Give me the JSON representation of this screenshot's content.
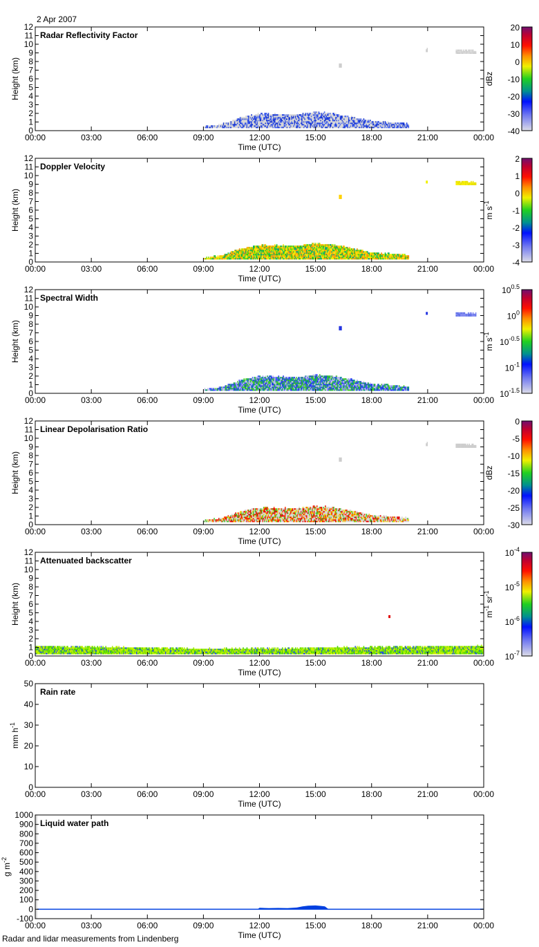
{
  "header": {
    "date": "2 Apr 2007"
  },
  "footer": {
    "caption": "Radar and lidar measurements from Lindenberg"
  },
  "chart_data": [
    {
      "type": "heatmap",
      "title": "Radar Reflectivity Factor",
      "xlabel": "Time (UTC)",
      "ylabel": "Height (km)",
      "xlim": [
        0,
        24
      ],
      "ylim": [
        0,
        12
      ],
      "xticks": [
        "00:00",
        "03:00",
        "06:00",
        "09:00",
        "12:00",
        "15:00",
        "18:00",
        "21:00",
        "00:00"
      ],
      "yticks": [
        0,
        1,
        2,
        3,
        4,
        5,
        6,
        7,
        8,
        9,
        10,
        11,
        12
      ],
      "colorbar": {
        "unit": {
          "base": "dBz",
          "exp": ""
        },
        "ticks": [
          {
            "v": "20"
          },
          {
            "v": "10"
          },
          {
            "v": "0"
          },
          {
            "v": "-10"
          },
          {
            "v": "-20"
          },
          {
            "v": "-30"
          },
          {
            "v": "-40"
          }
        ],
        "range": [
          -40,
          20
        ]
      },
      "layers": [
        {
          "t": [
            9.0,
            20.0
          ],
          "base_km": 0.3,
          "top_km": [
            [
              9,
              0.4
            ],
            [
              10,
              0.7
            ],
            [
              11,
              1.5
            ],
            [
              12,
              1.9
            ],
            [
              14,
              1.8
            ],
            [
              15,
              2.1
            ],
            [
              16,
              1.9
            ],
            [
              17,
              1.5
            ],
            [
              18,
              1.0
            ],
            [
              19,
              0.9
            ],
            [
              20,
              0.7
            ]
          ],
          "palette": [
            "#d6d6d6",
            "#d6d6d6",
            "#d6d6d6",
            "#2040e0",
            "#1030d0",
            "#4060f0",
            "#d6d6d6"
          ]
        },
        {
          "t": [
            16.25,
            16.4
          ],
          "base_km": 7.3,
          "top_km": [
            [
              16.25,
              7.7
            ],
            [
              16.4,
              7.7
            ]
          ],
          "palette": [
            "#cccccc"
          ]
        },
        {
          "t": [
            20.9,
            21.0
          ],
          "base_km": 9.1,
          "top_km": [
            [
              20.9,
              9.4
            ],
            [
              21,
              9.4
            ]
          ],
          "palette": [
            "#cccccc"
          ]
        },
        {
          "t": [
            22.5,
            23.6
          ],
          "base_km": 8.9,
          "top_km": [
            [
              22.5,
              9.3
            ],
            [
              23.6,
              9.2
            ]
          ],
          "palette": [
            "#cccccc",
            "#d8d8d8"
          ]
        }
      ]
    },
    {
      "type": "heatmap",
      "title": "Doppler Velocity",
      "xlabel": "Time (UTC)",
      "ylabel": "Height (km)",
      "xlim": [
        0,
        24
      ],
      "ylim": [
        0,
        12
      ],
      "xticks": [
        "00:00",
        "03:00",
        "06:00",
        "09:00",
        "12:00",
        "15:00",
        "18:00",
        "21:00",
        "00:00"
      ],
      "yticks": [
        0,
        1,
        2,
        3,
        4,
        5,
        6,
        7,
        8,
        9,
        10,
        11,
        12
      ],
      "colorbar": {
        "unit": {
          "base": "m s",
          "exp": "-1"
        },
        "ticks": [
          {
            "v": "2"
          },
          {
            "v": "1"
          },
          {
            "v": "0"
          },
          {
            "v": "-1"
          },
          {
            "v": "-2"
          },
          {
            "v": "-3"
          },
          {
            "v": "-4"
          }
        ],
        "range": [
          -4,
          2
        ]
      },
      "layers": [
        {
          "t": [
            9.0,
            20.0
          ],
          "base_km": 0.3,
          "top_km": [
            [
              9,
              0.4
            ],
            [
              10,
              0.7
            ],
            [
              11,
              1.5
            ],
            [
              12,
              1.9
            ],
            [
              14,
              1.8
            ],
            [
              15,
              2.1
            ],
            [
              16,
              1.9
            ],
            [
              17,
              1.5
            ],
            [
              18,
              1.0
            ],
            [
              19,
              0.9
            ],
            [
              20,
              0.7
            ]
          ],
          "palette": [
            "#f0e000",
            "#ffb000",
            "#ff8c00",
            "#80e000",
            "#20c020",
            "#00a080",
            "#f8f000"
          ]
        },
        {
          "t": [
            16.25,
            16.4
          ],
          "base_km": 7.3,
          "top_km": [
            [
              16.25,
              7.7
            ],
            [
              16.4,
              7.7
            ]
          ],
          "palette": [
            "#ffd000"
          ]
        },
        {
          "t": [
            20.9,
            21.0
          ],
          "base_km": 9.1,
          "top_km": [
            [
              20.9,
              9.4
            ],
            [
              21,
              9.4
            ]
          ],
          "palette": [
            "#f0f000"
          ]
        },
        {
          "t": [
            22.5,
            23.6
          ],
          "base_km": 8.9,
          "top_km": [
            [
              22.5,
              9.3
            ],
            [
              23.6,
              9.2
            ]
          ],
          "palette": [
            "#f8f000",
            "#e8e000"
          ]
        }
      ]
    },
    {
      "type": "heatmap",
      "title": "Spectral Width",
      "xlabel": "Time (UTC)",
      "ylabel": "Height (km)",
      "xlim": [
        0,
        24
      ],
      "ylim": [
        0,
        12
      ],
      "xticks": [
        "00:00",
        "03:00",
        "06:00",
        "09:00",
        "12:00",
        "15:00",
        "18:00",
        "21:00",
        "00:00"
      ],
      "yticks": [
        0,
        1,
        2,
        3,
        4,
        5,
        6,
        7,
        8,
        9,
        10,
        11,
        12
      ],
      "colorbar": {
        "unit": {
          "base": "m s",
          "exp": "-1"
        },
        "ticks": [
          {
            "v": "10",
            "e": "0.5"
          },
          {
            "v": "10",
            "e": "0"
          },
          {
            "v": "10",
            "e": "-0.5"
          },
          {
            "v": "10",
            "e": "-1"
          },
          {
            "v": "10",
            "e": "-1.5"
          }
        ],
        "range": [
          -1.5,
          0.5
        ]
      },
      "layers": [
        {
          "t": [
            9.0,
            20.0
          ],
          "base_km": 0.3,
          "top_km": [
            [
              9,
              0.4
            ],
            [
              10,
              0.7
            ],
            [
              11,
              1.5
            ],
            [
              12,
              1.9
            ],
            [
              14,
              1.8
            ],
            [
              15,
              2.1
            ],
            [
              16,
              1.9
            ],
            [
              17,
              1.5
            ],
            [
              18,
              1.0
            ],
            [
              19,
              0.9
            ],
            [
              20,
              0.7
            ]
          ],
          "palette": [
            "#2030f0",
            "#4050ff",
            "#a0a8f0",
            "#20b040",
            "#40d020",
            "#008890",
            "#c8c8e8"
          ]
        },
        {
          "t": [
            16.25,
            16.4
          ],
          "base_km": 7.3,
          "top_km": [
            [
              16.25,
              7.7
            ],
            [
              16.4,
              7.7
            ]
          ],
          "palette": [
            "#2030e0"
          ]
        },
        {
          "t": [
            20.9,
            21.0
          ],
          "base_km": 9.1,
          "top_km": [
            [
              20.9,
              9.4
            ],
            [
              21,
              9.4
            ]
          ],
          "palette": [
            "#2030e0"
          ]
        },
        {
          "t": [
            22.5,
            23.6
          ],
          "base_km": 8.9,
          "top_km": [
            [
              22.5,
              9.3
            ],
            [
              23.6,
              9.2
            ]
          ],
          "palette": [
            "#8088f0",
            "#6070e8"
          ]
        }
      ]
    },
    {
      "type": "heatmap",
      "title": "Linear Depolarisation Ratio",
      "xlabel": "Time (UTC)",
      "ylabel": "Height (km)",
      "xlim": [
        0,
        24
      ],
      "ylim": [
        0,
        12
      ],
      "xticks": [
        "00:00",
        "03:00",
        "06:00",
        "09:00",
        "12:00",
        "15:00",
        "18:00",
        "21:00",
        "00:00"
      ],
      "yticks": [
        0,
        1,
        2,
        3,
        4,
        5,
        6,
        7,
        8,
        9,
        10,
        11,
        12
      ],
      "colorbar": {
        "unit": {
          "base": "dBz",
          "exp": ""
        },
        "ticks": [
          {
            "v": "0"
          },
          {
            "v": "-5"
          },
          {
            "v": "-10"
          },
          {
            "v": "-15"
          },
          {
            "v": "-20"
          },
          {
            "v": "-25"
          },
          {
            "v": "-30"
          }
        ],
        "range": [
          -30,
          0
        ]
      },
      "layers": [
        {
          "t": [
            9.0,
            20.0
          ],
          "base_km": 0.3,
          "top_km": [
            [
              9,
              0.4
            ],
            [
              10,
              0.7
            ],
            [
              11,
              1.5
            ],
            [
              12,
              1.9
            ],
            [
              14,
              1.8
            ],
            [
              15,
              2.1
            ],
            [
              16,
              1.9
            ],
            [
              17,
              1.5
            ],
            [
              18,
              1.0
            ],
            [
              19,
              0.9
            ],
            [
              20,
              0.7
            ]
          ],
          "palette": [
            "#d6d6d6",
            "#d6d6d6",
            "#e00000",
            "#ff3000",
            "#f0d000",
            "#40c020",
            "#d6d6d6"
          ]
        },
        {
          "t": [
            16.25,
            16.4
          ],
          "base_km": 7.3,
          "top_km": [
            [
              16.25,
              7.7
            ],
            [
              16.4,
              7.7
            ]
          ],
          "palette": [
            "#cccccc"
          ]
        },
        {
          "t": [
            20.9,
            21.0
          ],
          "base_km": 9.1,
          "top_km": [
            [
              20.9,
              9.4
            ],
            [
              21,
              9.4
            ]
          ],
          "palette": [
            "#cccccc"
          ]
        },
        {
          "t": [
            22.5,
            23.6
          ],
          "base_km": 8.9,
          "top_km": [
            [
              22.5,
              9.3
            ],
            [
              23.6,
              9.2
            ]
          ],
          "palette": [
            "#cccccc"
          ]
        }
      ]
    },
    {
      "type": "heatmap",
      "title": "Attenuated backscatter",
      "xlabel": "Time (UTC)",
      "ylabel": "Height (km)",
      "xlim": [
        0,
        24
      ],
      "ylim": [
        0,
        12
      ],
      "xticks": [
        "00:00",
        "03:00",
        "06:00",
        "09:00",
        "12:00",
        "15:00",
        "18:00",
        "21:00",
        "00:00"
      ],
      "yticks": [
        0,
        1,
        2,
        3,
        4,
        5,
        6,
        7,
        8,
        9,
        10,
        11,
        12
      ],
      "colorbar": {
        "unit": {
          "base": "m",
          "exp": "-1",
          "base2": " sr",
          "exp2": "-1"
        },
        "ticks": [
          {
            "v": "10",
            "e": "-4"
          },
          {
            "v": "10",
            "e": "-5"
          },
          {
            "v": "10",
            "e": "-6"
          },
          {
            "v": "10",
            "e": "-7"
          }
        ],
        "range": [
          -7,
          -4
        ]
      },
      "layers": [
        {
          "t": [
            0,
            24
          ],
          "base_km": 0.2,
          "top_km": [
            [
              0,
              1.1
            ],
            [
              6,
              0.9
            ],
            [
              9,
              0.8
            ],
            [
              12,
              0.8
            ],
            [
              15,
              0.9
            ],
            [
              18,
              1.0
            ],
            [
              24,
              1.1
            ]
          ],
          "palette": [
            "#80e000",
            "#a0f000",
            "#c0f000",
            "#40d000",
            "#60e000",
            "#2050e0",
            "#d0f000"
          ]
        },
        {
          "t": [
            18.9,
            19.0
          ],
          "base_km": 4.4,
          "top_km": [
            [
              18.9,
              4.6
            ],
            [
              19,
              4.6
            ]
          ],
          "palette": [
            "#e00000"
          ]
        }
      ]
    },
    {
      "type": "line",
      "title": "Rain rate",
      "xlabel": "Time (UTC)",
      "ylabel": {
        "base": "mm h",
        "exp": "-1"
      },
      "xlim": [
        0,
        24
      ],
      "ylim": [
        0,
        50
      ],
      "xticks": [
        "00:00",
        "03:00",
        "06:00",
        "09:00",
        "12:00",
        "15:00",
        "18:00",
        "21:00",
        "00:00"
      ],
      "yticks": [
        0,
        10,
        20,
        30,
        40,
        50
      ],
      "x": [],
      "y": []
    },
    {
      "type": "area",
      "title": "Liquid water path",
      "xlabel": "Time (UTC)",
      "ylabel": {
        "base": "g m",
        "exp": "-2"
      },
      "xlim": [
        0,
        24
      ],
      "ylim": [
        -100,
        1000
      ],
      "xticks": [
        "00:00",
        "03:00",
        "06:00",
        "09:00",
        "12:00",
        "15:00",
        "18:00",
        "21:00",
        "00:00"
      ],
      "yticks": [
        -100,
        0,
        100,
        200,
        300,
        400,
        500,
        600,
        700,
        800,
        900,
        1000
      ],
      "baseline": 0,
      "color": "#0040e0",
      "x": [
        11.9,
        12.0,
        12.5,
        13.0,
        13.5,
        14.0,
        14.3,
        14.6,
        15.0,
        15.3,
        15.5,
        15.7
      ],
      "y": [
        0,
        15,
        12,
        14,
        12,
        18,
        30,
        38,
        40,
        35,
        30,
        0
      ]
    }
  ]
}
